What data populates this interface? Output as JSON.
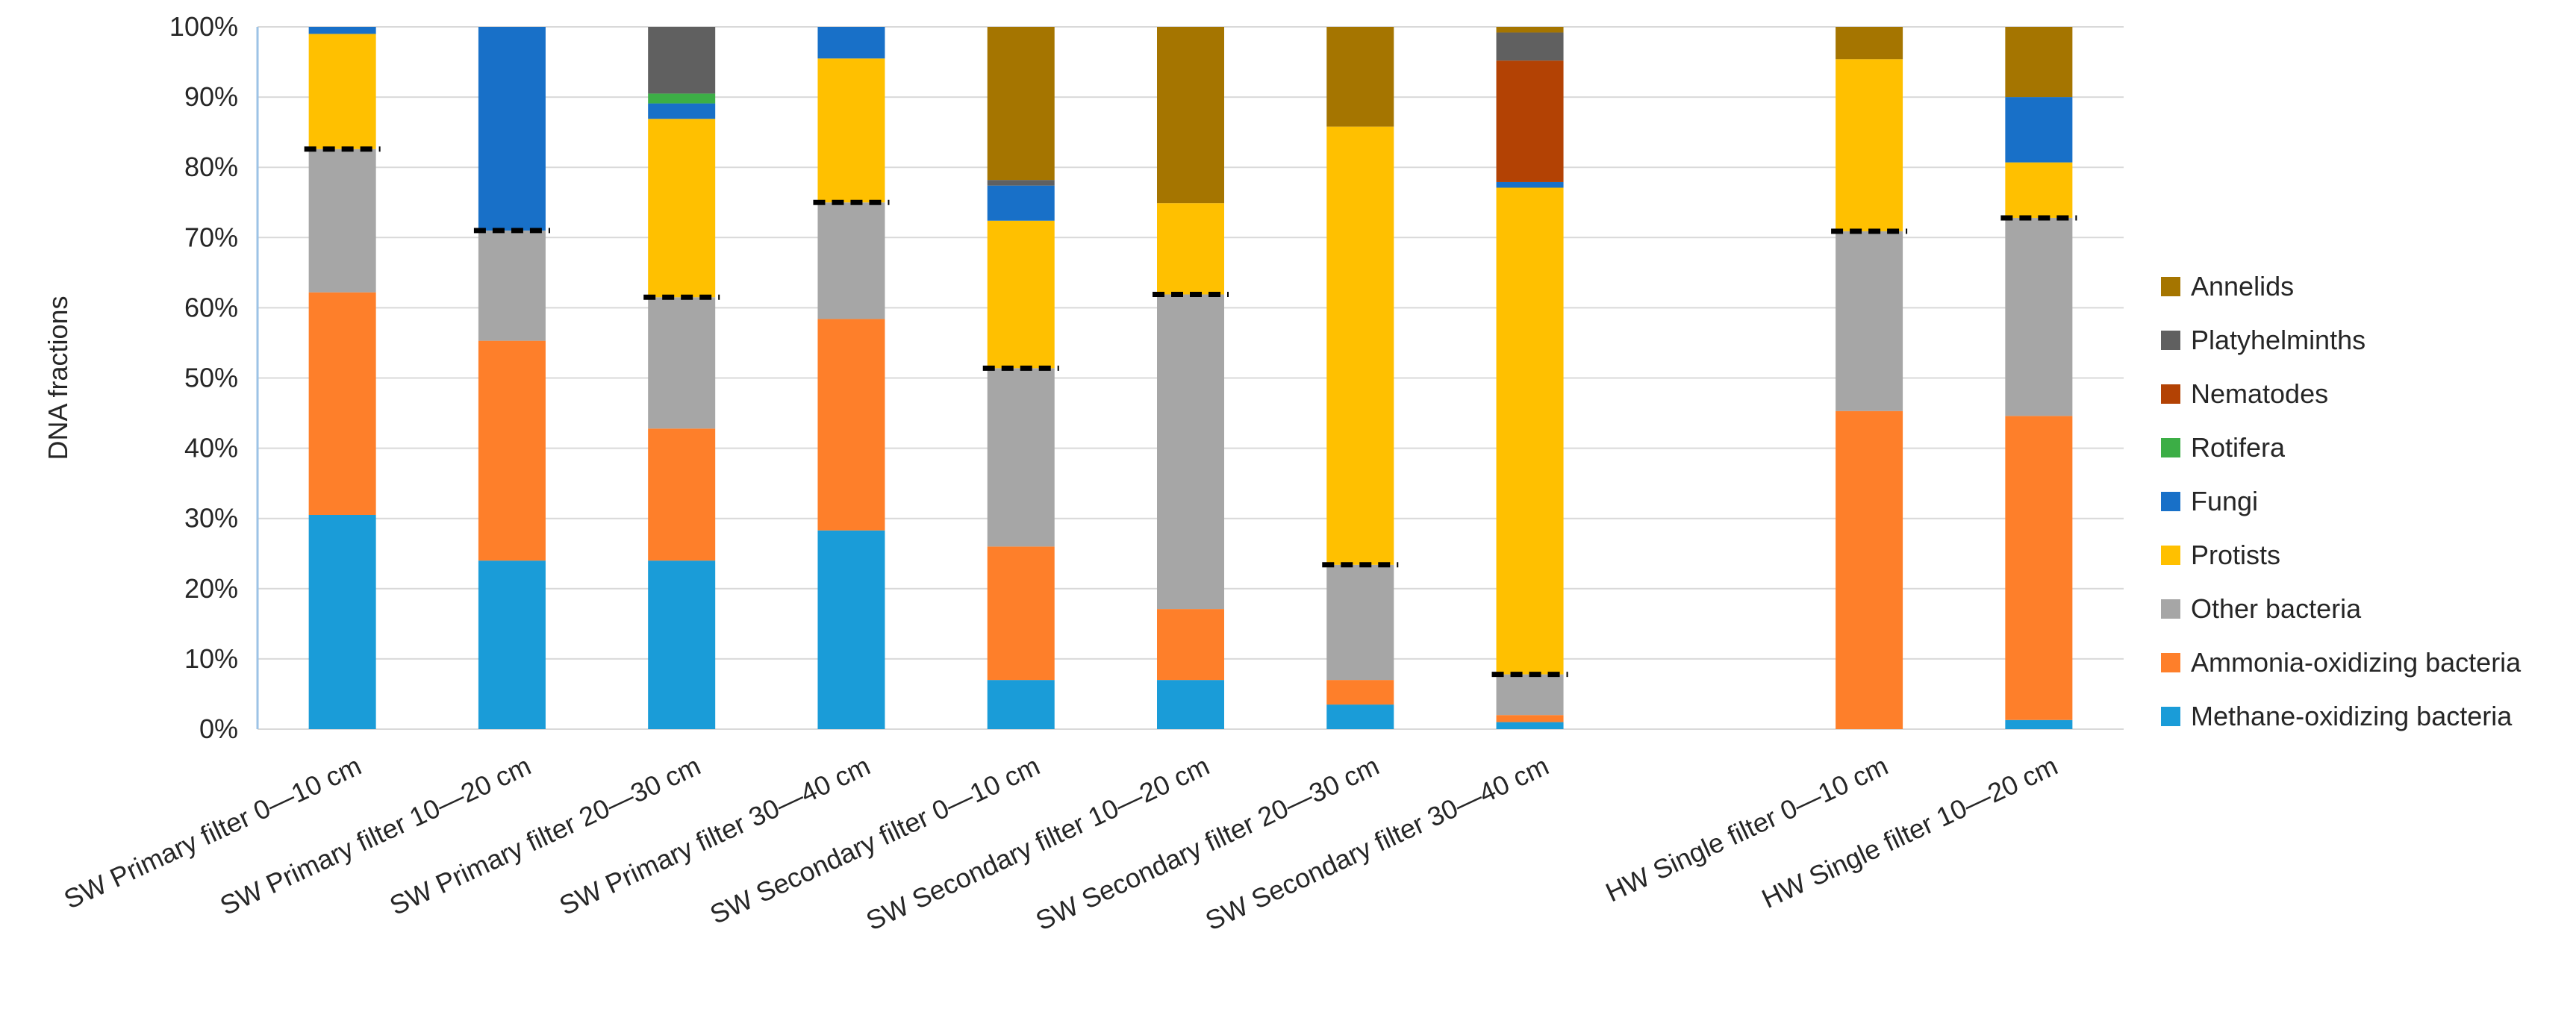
{
  "chart_data": {
    "type": "bar",
    "stacked": true,
    "title": "",
    "xlabel": "",
    "ylabel": "DNA fractions",
    "ylim": [
      0,
      100
    ],
    "y_ticks": [
      "0%",
      "10%",
      "20%",
      "30%",
      "40%",
      "50%",
      "60%",
      "70%",
      "80%",
      "90%",
      "100%"
    ],
    "grid": "horizontal",
    "legend_position": "right",
    "categories": [
      "SW Primary filter 0—10 cm",
      "SW Primary filter 10—20 cm",
      "SW Primary filter 20—30 cm",
      "SW Primary filter 30—40 cm",
      "SW Secondary filter 0—10 cm",
      "SW Secondary filter 10—20 cm",
      "SW Secondary filter 20—30 cm",
      "SW Secondary filter 30—40 cm",
      "",
      "HW Single filter 0—10 cm",
      "HW Single filter 10—20 cm"
    ],
    "series": [
      {
        "name": "Methane-oxidizing bacteria",
        "color": "#1a9cd8",
        "values": [
          30.5,
          24,
          24,
          28.3,
          7,
          7,
          3.5,
          1,
          null,
          0,
          1.3
        ]
      },
      {
        "name": "Ammonia-oxidizing bacteria",
        "color": "#fe7f2a",
        "values": [
          31.7,
          31.3,
          18.8,
          30.1,
          19,
          10.1,
          3.5,
          1,
          null,
          45.3,
          43.3
        ]
      },
      {
        "name": "Other bacteria",
        "color": "#a6a6a6",
        "values": [
          20.4,
          15.7,
          18.7,
          16.6,
          25.4,
          44.8,
          16.4,
          5.8,
          null,
          25.6,
          28.2
        ]
      },
      {
        "name": "Protists",
        "color": "#ffc000",
        "values": [
          16.4,
          0,
          25.4,
          20.5,
          21,
          13,
          62.4,
          69.3,
          null,
          24.5,
          7.9
        ]
      },
      {
        "name": "Fungi",
        "color": "#1870c8",
        "values": [
          1,
          29,
          2.2,
          4.5,
          5,
          0,
          0,
          0.8,
          null,
          0,
          9.3
        ]
      },
      {
        "name": "Rotifera",
        "color": "#3cae46",
        "values": [
          0,
          0,
          1.4,
          0,
          0,
          0,
          0,
          0,
          null,
          0,
          0
        ]
      },
      {
        "name": "Nematodes",
        "color": "#b34204",
        "values": [
          0,
          0,
          0,
          0,
          0,
          0,
          0,
          17.3,
          null,
          0,
          0
        ]
      },
      {
        "name": "Platyhelminths",
        "color": "#606060",
        "values": [
          0,
          0,
          9.5,
          0,
          0.8,
          0,
          0,
          4,
          null,
          0,
          0
        ]
      },
      {
        "name": "Annelids",
        "color": "#a57500",
        "values": [
          0,
          0,
          0,
          0,
          21.8,
          25.1,
          14.2,
          0.8,
          null,
          4.6,
          10
        ]
      }
    ],
    "markers": {
      "style": "dashed black line",
      "values": [
        82.6,
        71,
        61.5,
        75,
        51.4,
        61.9,
        23.4,
        7.8,
        null,
        70.9,
        72.8
      ]
    }
  }
}
